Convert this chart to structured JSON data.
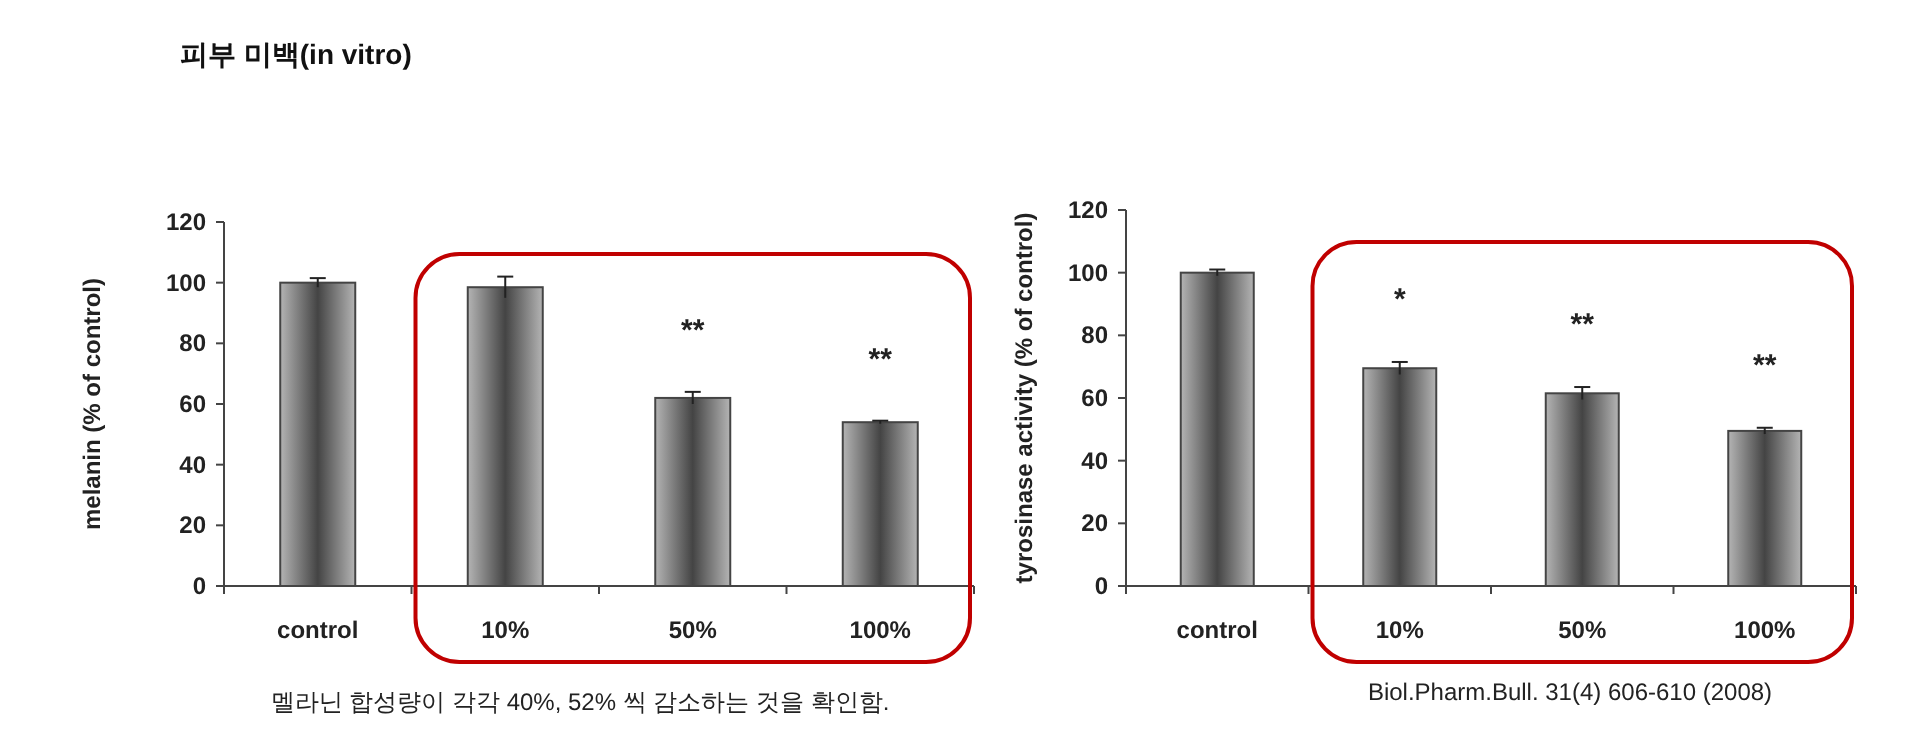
{
  "chart_data": [
    {
      "type": "bar",
      "title": "피부 미백(in vitro)",
      "ylabel": "melanin (% of control)",
      "categories": [
        "control",
        "10%",
        "50%",
        "100%"
      ],
      "series": [
        {
          "color": "#444444",
          "values": [
            100,
            98.5,
            62,
            54
          ],
          "errors": [
            1.5,
            3.5,
            2,
            0.5
          ]
        }
      ],
      "ylim": [
        0,
        120
      ],
      "yticks": [
        0,
        20,
        40,
        60,
        80,
        100,
        120
      ],
      "annotations": [
        "**",
        "**",
        "멜라닌 합성량이 각각 40%, 52% 씩 감소하는 것을 확인함."
      ]
    },
    {
      "type": "bar",
      "ylabel": "tyrosinase activity (% of control)",
      "categories": [
        "control",
        "10%",
        "50%",
        "100%"
      ],
      "series": [
        {
          "color": "#444444",
          "values": [
            100,
            69.5,
            61.5,
            49.5
          ],
          "errors": [
            1,
            2,
            2,
            1
          ]
        }
      ],
      "ylim": [
        0,
        120
      ],
      "yticks": [
        0,
        20,
        40,
        60,
        80,
        100,
        120
      ],
      "annotations": [
        "*",
        "**",
        "**",
        "Biol.Pharm.Bull. 31(4) 606-610 (2008)"
      ]
    }
  ]
}
